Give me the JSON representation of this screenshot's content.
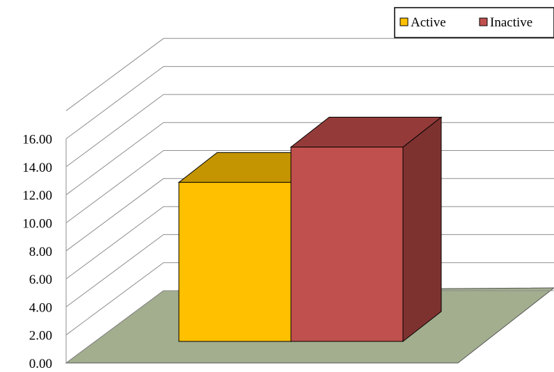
{
  "chart_data": {
    "type": "bar",
    "title": "",
    "xlabel": "",
    "ylabel": "",
    "style": "3d-clustered-column",
    "ylim": [
      0,
      16
    ],
    "yticks": [
      "0.00",
      "2.00",
      "4.00",
      "6.00",
      "8.00",
      "10.00",
      "12.00",
      "14.00",
      "16.00"
    ],
    "grid": true,
    "legend_position": "top-right",
    "categories": [
      ""
    ],
    "series": [
      {
        "name": "Active",
        "values": [
          11.7
        ],
        "color": "#FFC000",
        "top_color": "#C49500",
        "side_color": "#BF9000"
      },
      {
        "name": "Inactive",
        "values": [
          14.3
        ],
        "color": "#C0504D",
        "top_color": "#943B39",
        "side_color": "#7E3230"
      }
    ],
    "floor_color": "#A2AE8E"
  }
}
